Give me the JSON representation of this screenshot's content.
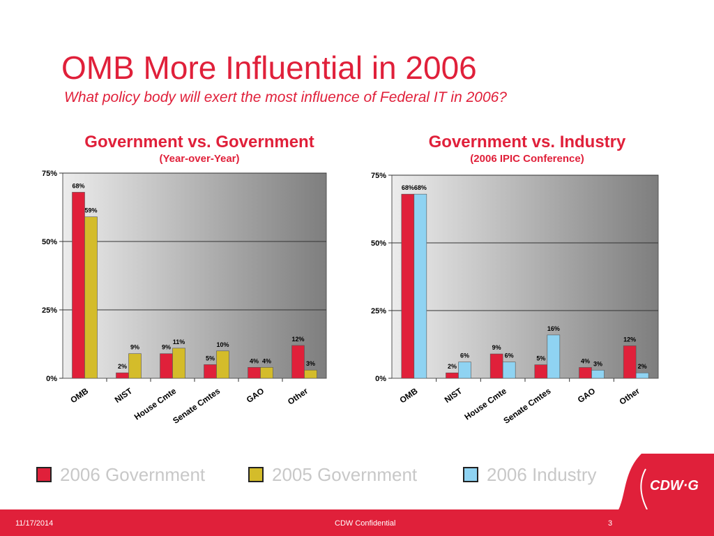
{
  "slide": {
    "title": "OMB More Influential in 2006",
    "subtitle": "What policy body will exert the most influence of Federal IT in 2006?"
  },
  "charts": [
    {
      "title": "Government vs. Government",
      "subtitle": "(Year-over-Year)"
    },
    {
      "title": "Government vs. Industry",
      "subtitle": "(2006 IPIC Conference)"
    }
  ],
  "chart_data": [
    {
      "type": "bar",
      "categories": [
        "OMB",
        "NIST",
        "House Cmte",
        "Senate Cmtes",
        "GAO",
        "Other"
      ],
      "series": [
        {
          "name": "2006 Government",
          "values": [
            68,
            2,
            9,
            5,
            4,
            12
          ],
          "labels": [
            "68%",
            "2%",
            "9%",
            "5%",
            "4%",
            "12%"
          ],
          "color": "#e0203a"
        },
        {
          "name": "2005 Government",
          "values": [
            59,
            9,
            11,
            10,
            4,
            3
          ],
          "labels": [
            "59%",
            "9%",
            "11%",
            "10%",
            "4%",
            "3%"
          ],
          "color": "#d4bc2a"
        }
      ],
      "ylim": [
        0,
        75
      ],
      "yticks": [
        0,
        25,
        50,
        75
      ],
      "ytick_labels": [
        "0%",
        "25%",
        "50%",
        "75%"
      ],
      "grid": true
    },
    {
      "type": "bar",
      "categories": [
        "OMB",
        "NIST",
        "House Cmte",
        "Senate Cmtes",
        "GAO",
        "Other"
      ],
      "series": [
        {
          "name": "2006 Government",
          "values": [
            68,
            2,
            9,
            5,
            4,
            12
          ],
          "labels": [
            "68%",
            "2%",
            "9%",
            "5%",
            "4%",
            "12%"
          ],
          "color": "#e0203a"
        },
        {
          "name": "2006 Industry",
          "values": [
            68,
            6,
            6,
            16,
            3,
            2
          ],
          "labels": [
            "68%",
            "6%",
            "6%",
            "16%",
            "3%",
            "2%"
          ],
          "color": "#8fd3f2"
        }
      ],
      "ylim": [
        0,
        75
      ],
      "yticks": [
        0,
        25,
        50,
        75
      ],
      "ytick_labels": [
        "0%",
        "25%",
        "50%",
        "75%"
      ],
      "grid": true
    }
  ],
  "legend": [
    {
      "label": "2006 Government",
      "color": "#e0203a"
    },
    {
      "label": "2005 Government",
      "color": "#d4bc2a"
    },
    {
      "label": "2006 Industry",
      "color": "#8fd3f2"
    }
  ],
  "logo": {
    "text": "CDW·G"
  },
  "footer": {
    "date": "11/17/2014",
    "confidential": "CDW Confidential",
    "page": "3"
  }
}
